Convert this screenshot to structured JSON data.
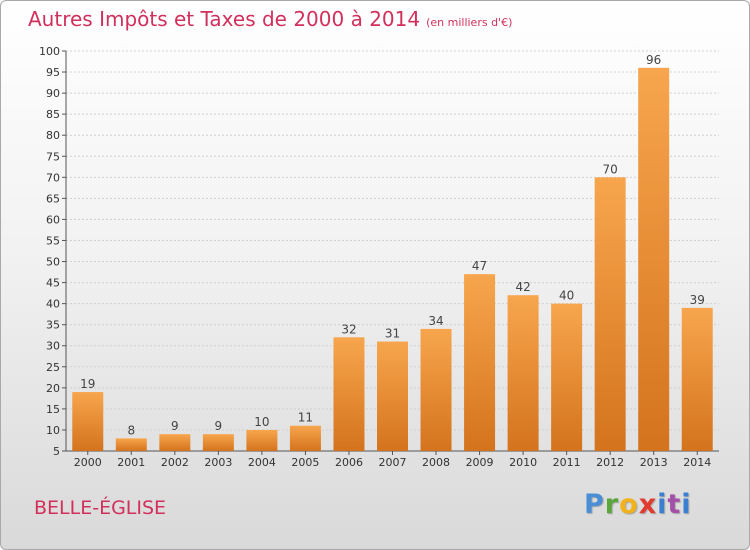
{
  "header": {
    "title": "Autres Impôts et Taxes de 2000 à 2014",
    "unit": "(en milliers d'€)"
  },
  "footer": {
    "commune": "BELLE-ÉGLISE",
    "logo": "Proxiti"
  },
  "colors": {
    "bar_top": "#f7a64e",
    "bar_bottom": "#d4731d",
    "title": "#d2305c"
  },
  "chart_data": {
    "type": "bar",
    "categories": [
      "2000",
      "2001",
      "2002",
      "2003",
      "2004",
      "2005",
      "2006",
      "2007",
      "2008",
      "2009",
      "2010",
      "2011",
      "2012",
      "2013",
      "2014"
    ],
    "values": [
      19,
      8,
      9,
      9,
      10,
      11,
      32,
      31,
      34,
      47,
      42,
      40,
      70,
      96,
      39
    ],
    "title": "Autres Impôts et Taxes de 2000 à 2014",
    "xlabel": "",
    "ylabel": "",
    "ylim": [
      5,
      100
    ],
    "yticks": [
      5,
      10,
      15,
      20,
      25,
      30,
      35,
      40,
      45,
      50,
      55,
      60,
      65,
      70,
      75,
      80,
      85,
      90,
      95,
      100
    ],
    "grid": true,
    "data_labels": true
  }
}
